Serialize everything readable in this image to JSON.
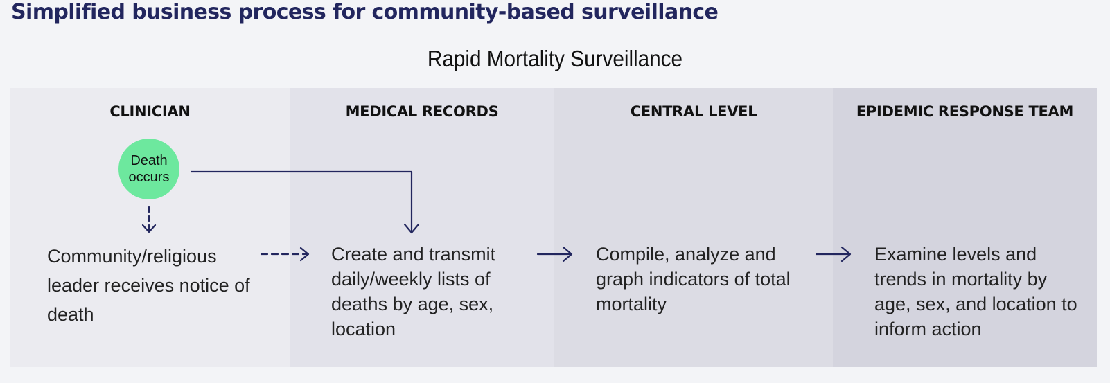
{
  "title": "Simplified business process for community-based surveillance",
  "subtitle": "Rapid Mortality Surveillance",
  "colors": {
    "title": "#22265e",
    "arrow": "#22265e",
    "event_circle": "#6de89e",
    "lanes": [
      "#ebebf0",
      "#e2e2ea",
      "#dcdce4",
      "#d4d4de"
    ]
  },
  "lanes": [
    {
      "label": "CLINICIAN"
    },
    {
      "label": "MEDICAL RECORDS"
    },
    {
      "label": "CENTRAL LEVEL"
    },
    {
      "label": "EPIDEMIC RESPONSE TEAM"
    }
  ],
  "start_event": {
    "label": "Death occurs"
  },
  "steps": [
    {
      "text": "Community/religious leader receives notice of death"
    },
    {
      "text": "Create and transmit daily/weekly lists of deaths by age, sex, location"
    },
    {
      "text": "Compile, analyze and graph indicators of total mortality"
    },
    {
      "text": "Examine levels and trends in mortality by age, sex, and location to inform action"
    }
  ],
  "connectors": [
    {
      "from": "start_event",
      "to": "steps.0",
      "style": "dashed"
    },
    {
      "from": "start_event",
      "to": "steps.1",
      "style": "solid"
    },
    {
      "from": "steps.0",
      "to": "steps.1",
      "style": "dashed"
    },
    {
      "from": "steps.1",
      "to": "steps.2",
      "style": "solid"
    },
    {
      "from": "steps.2",
      "to": "steps.3",
      "style": "solid"
    }
  ]
}
